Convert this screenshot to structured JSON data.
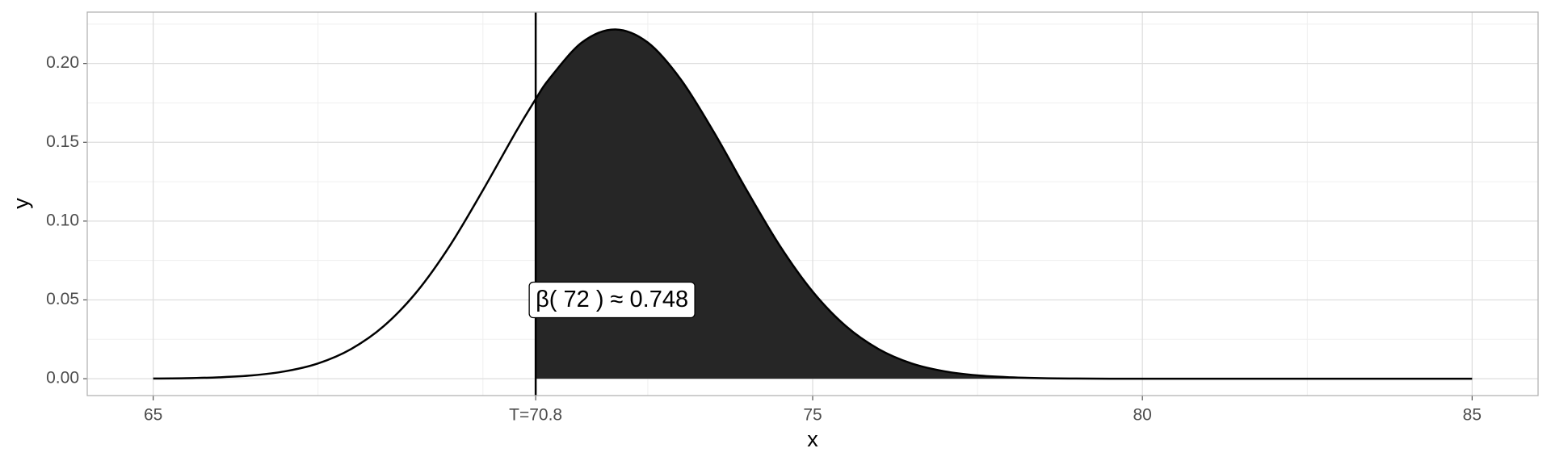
{
  "chart_data": {
    "type": "area-threshold",
    "x_label": "x",
    "y_label": "y",
    "x": [
      65,
      65.5,
      66,
      66.5,
      67,
      67.5,
      68,
      68.5,
      69,
      69.5,
      70,
      70.5,
      70.8,
      71,
      71.5,
      72,
      72.5,
      73,
      73.5,
      74,
      74.5,
      75,
      75.5,
      76,
      76.5,
      77,
      77.5,
      78,
      78.5,
      79,
      79.5,
      80,
      80.5,
      81,
      81.5,
      82,
      82.5,
      83,
      83.5,
      84,
      84.5,
      85
    ],
    "values": [
      0.0001,
      0.0003,
      0.0009,
      0.0021,
      0.0047,
      0.0097,
      0.0188,
      0.0335,
      0.0553,
      0.0845,
      0.1196,
      0.1566,
      0.1774,
      0.1899,
      0.2133,
      0.2216,
      0.2133,
      0.1899,
      0.1566,
      0.1196,
      0.0845,
      0.0553,
      0.0335,
      0.0188,
      0.0097,
      0.0047,
      0.0021,
      0.0009,
      0.0003,
      0.0001,
      0,
      0,
      0,
      0,
      0,
      0,
      0,
      0,
      0,
      0,
      0,
      0
    ],
    "threshold": 70.8,
    "line_color": "#000000",
    "fill_color": "#262626",
    "annotation": {
      "text": "β( 72 ) ≈ 0.748",
      "x": 70.8,
      "y": 0.05
    },
    "xlim": [
      64,
      86
    ],
    "ylim": [
      -0.0107,
      0.2326
    ],
    "xticks": [
      65,
      {
        "value": 70.8,
        "label": "T=70.8"
      },
      75,
      80,
      85
    ],
    "yticks": [
      {
        "value": 0,
        "label": "0.00"
      },
      {
        "value": 0.05,
        "label": "0.05"
      },
      {
        "value": 0.1,
        "label": "0.10"
      },
      {
        "value": 0.15,
        "label": "0.15"
      },
      {
        "value": 0.2,
        "label": "0.20"
      }
    ],
    "x_minor_grid": [
      67.5,
      70,
      72.5,
      77.5,
      82.5
    ],
    "y_minor_grid": [
      0.025,
      0.075,
      0.125,
      0.175,
      0.225
    ],
    "grid": true
  }
}
